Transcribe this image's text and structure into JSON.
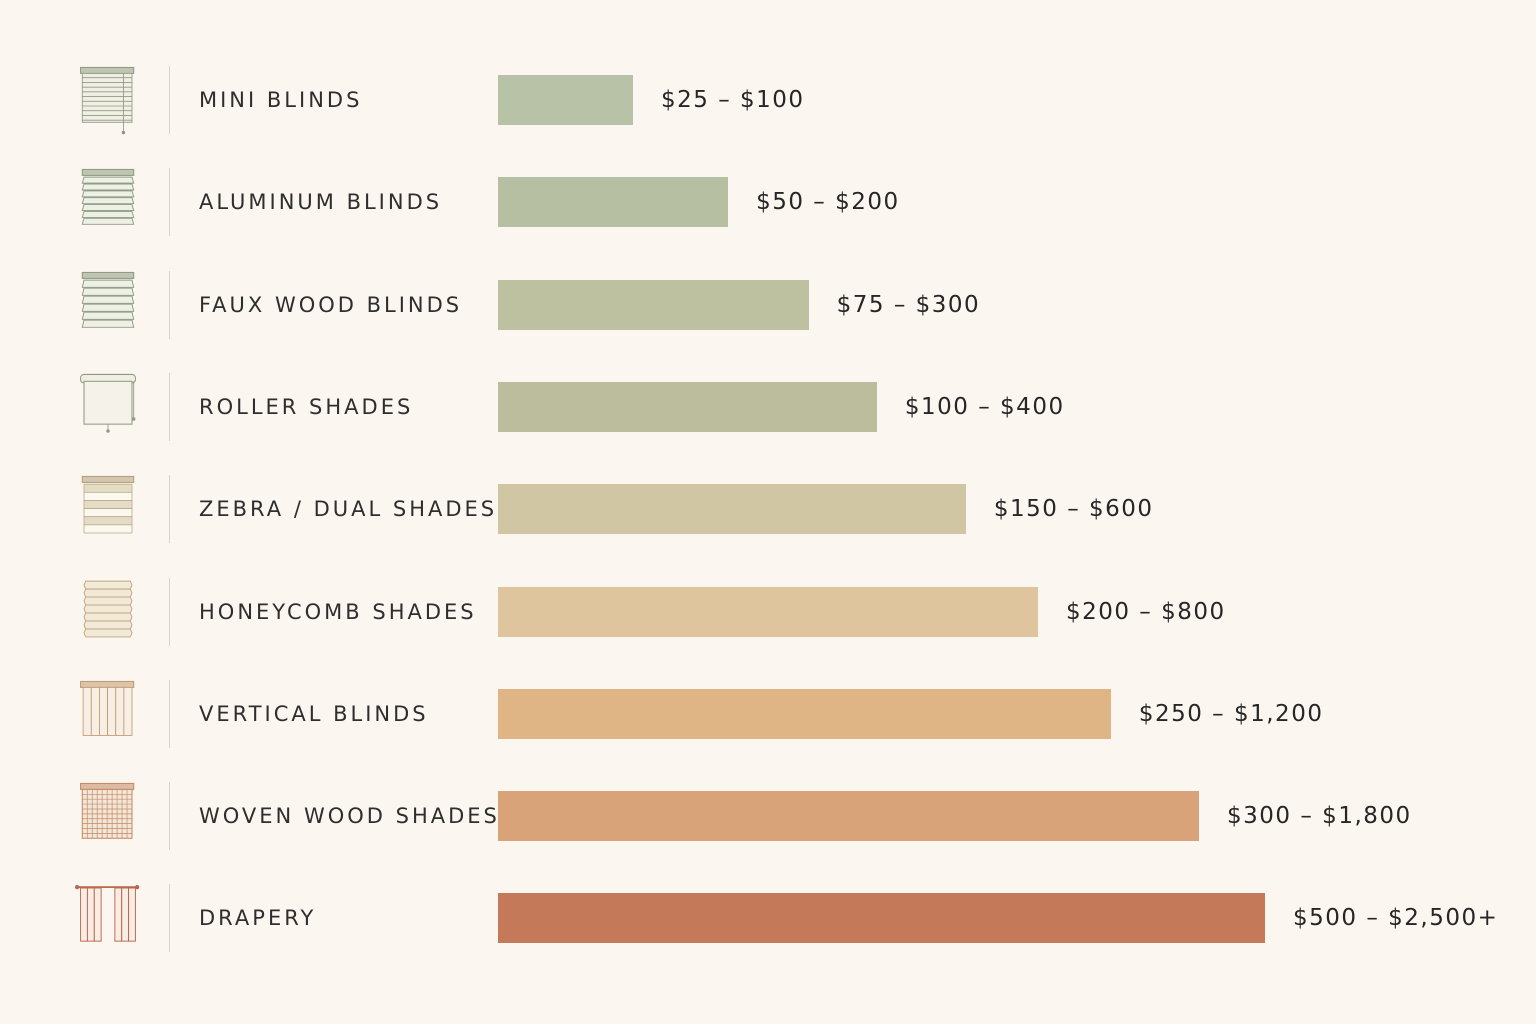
{
  "chart_data": {
    "type": "bar",
    "orientation": "horizontal",
    "title": "",
    "xlabel": "",
    "ylabel": "",
    "categories": [
      "MINI BLINDS",
      "ALUMINUM BLINDS",
      "FAUX WOOD BLINDS",
      "ROLLER SHADES",
      "ZEBRA / DUAL SHADES",
      "HONEYCOMB SHADES",
      "VERTICAL BLINDS",
      "WOVEN WOOD SHADES",
      "DRAPERY"
    ],
    "value_labels": [
      "$25 – $100",
      "$50 – $200",
      "$75 – $300",
      "$100 – $400",
      "$150 – $600",
      "$200 – $800",
      "$250 – $1,200",
      "$300 – $1,800",
      "$500 – $2,500+"
    ],
    "relative_values": [
      17.6,
      30.0,
      40.5,
      49.4,
      61.0,
      70.4,
      79.9,
      91.4,
      100
    ],
    "xlim": [
      0,
      100
    ],
    "colors": [
      "#b8c2a6",
      "#b6bfa1",
      "#bec19f",
      "#bcbd9c",
      "#d0c6a3",
      "#dec59e",
      "#e0b586",
      "#d8a378",
      "#c47a59"
    ],
    "icons": [
      "mini-blinds-icon",
      "aluminum-blinds-icon",
      "faux-wood-blinds-icon",
      "roller-shade-icon",
      "zebra-shade-icon",
      "honeycomb-shade-icon",
      "vertical-blinds-icon",
      "woven-wood-shade-icon",
      "drapery-icon"
    ],
    "grid": false,
    "legend": "none"
  }
}
